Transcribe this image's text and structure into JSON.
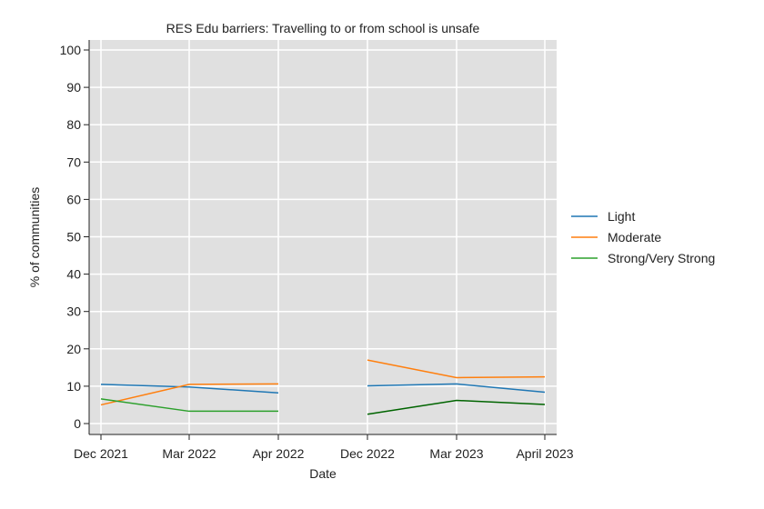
{
  "chart_data": {
    "type": "line",
    "title": "RES Edu barriers: Travelling to or from school is unsafe",
    "xlabel": "Date",
    "ylabel": "% of communities",
    "ylim": [
      0,
      100
    ],
    "yticks": [
      0,
      10,
      20,
      30,
      40,
      50,
      60,
      70,
      80,
      90,
      100
    ],
    "categories": [
      "Dec 2021",
      "Mar 2022",
      "Apr 2022",
      "Dec 2022",
      "Mar 2023",
      "April 2023"
    ],
    "grid": true,
    "legend_position": "right",
    "series": [
      {
        "name": "Light",
        "color": "#1f77b4",
        "segments": [
          {
            "x": [
              0,
              1,
              2
            ],
            "y": [
              10.5,
              9.8,
              8.2
            ]
          },
          {
            "x": [
              3,
              4,
              5
            ],
            "y": [
              10.1,
              10.6,
              8.4
            ]
          }
        ]
      },
      {
        "name": "Moderate",
        "color": "#ff7f0e",
        "segments": [
          {
            "x": [
              0,
              1,
              2
            ],
            "y": [
              5.0,
              10.5,
              10.6
            ]
          },
          {
            "x": [
              3,
              4,
              5
            ],
            "y": [
              17.0,
              12.3,
              12.5
            ]
          }
        ]
      },
      {
        "name": "Strong/Very Strong",
        "color": "#2ca02c",
        "segments": [
          {
            "x": [
              0,
              1,
              2
            ],
            "y": [
              6.6,
              3.3,
              3.3
            ],
            "color": "#2ca02c"
          },
          {
            "x": [
              3,
              4,
              5
            ],
            "y": [
              2.5,
              6.2,
              5.1
            ],
            "color": "#006400"
          }
        ]
      }
    ]
  }
}
